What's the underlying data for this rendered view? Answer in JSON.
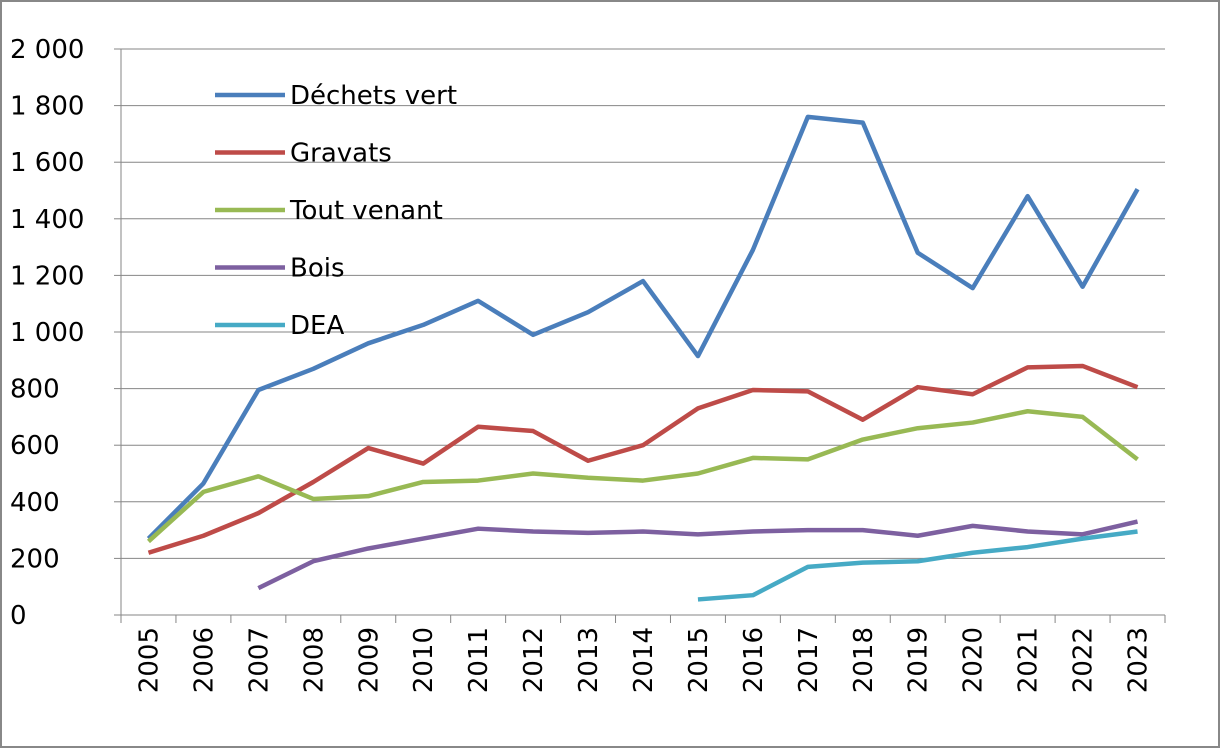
{
  "chart_data": {
    "type": "line",
    "categories": [
      "2005",
      "2006",
      "2007",
      "2008",
      "2009",
      "2010",
      "2011",
      "2012",
      "2013",
      "2014",
      "2015",
      "2016",
      "2017",
      "2018",
      "2019",
      "2020",
      "2021",
      "2022",
      "2023"
    ],
    "series": [
      {
        "name": "Déchets vert",
        "color": "#4a7ebb",
        "values": [
          270,
          465,
          795,
          870,
          960,
          1025,
          1110,
          990,
          1070,
          1180,
          915,
          1290,
          1760,
          1740,
          1280,
          1155,
          1480,
          1160,
          1505
        ]
      },
      {
        "name": "Gravats",
        "color": "#be4b48",
        "values": [
          220,
          280,
          360,
          470,
          590,
          535,
          665,
          650,
          545,
          600,
          730,
          795,
          790,
          690,
          805,
          780,
          875,
          880,
          805
        ]
      },
      {
        "name": "Tout venant",
        "color": "#98b954",
        "values": [
          260,
          435,
          490,
          410,
          420,
          470,
          475,
          500,
          485,
          475,
          500,
          555,
          550,
          620,
          660,
          680,
          720,
          700,
          550
        ]
      },
      {
        "name": "Bois",
        "color": "#7d60a0",
        "values": [
          null,
          null,
          95,
          190,
          235,
          270,
          305,
          295,
          290,
          295,
          285,
          295,
          300,
          300,
          280,
          315,
          295,
          285,
          330
        ]
      },
      {
        "name": "DEA",
        "color": "#46aac5",
        "values": [
          null,
          null,
          null,
          null,
          null,
          null,
          null,
          null,
          null,
          null,
          55,
          70,
          170,
          185,
          190,
          220,
          240,
          270,
          295
        ]
      }
    ],
    "ylim": [
      0,
      2000
    ],
    "yticks": [
      0,
      200,
      400,
      600,
      {
        "value": 800,
        "label": "800"
      },
      {
        "value": 1000,
        "label": "1 000"
      },
      {
        "value": 1200,
        "label": "1 200"
      },
      {
        "value": 1400,
        "label": "1 400"
      },
      {
        "value": 1600,
        "label": "1 600"
      },
      {
        "value": 1800,
        "label": "1 800"
      },
      {
        "value": 2000,
        "label": "2 000"
      }
    ],
    "grid": true,
    "legend": "upper left"
  }
}
